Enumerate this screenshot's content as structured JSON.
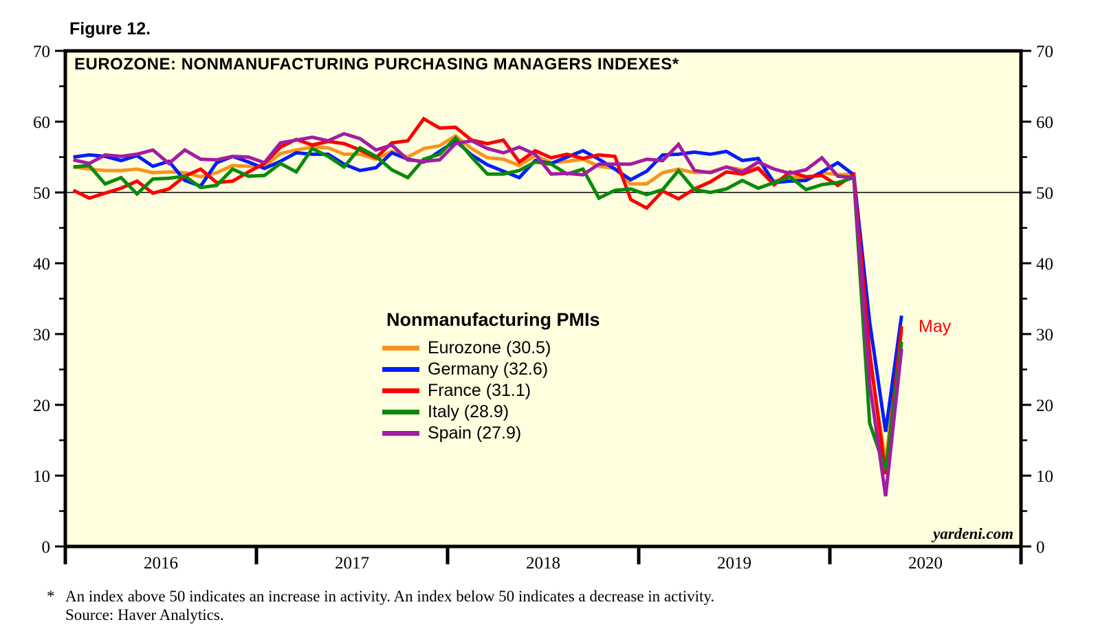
{
  "figure_label": "Figure 12.",
  "annotation_may": "May",
  "watermark": "yardeni.com",
  "footnote": {
    "marker": "*",
    "line1": "An index above 50 indicates an increase in activity. An index below 50 indicates a decrease in activity.",
    "line2": "Source: Haver Analytics."
  },
  "legend": {
    "header": "Nonmanufacturing PMIs"
  },
  "chart_data": {
    "type": "line",
    "title": "EUROZONE: NONMANUFACTURING PURCHASING MANAGERS INDEXES*",
    "background_color": "#FFFFE0",
    "frame_color": "#000000",
    "ylim": [
      0,
      70
    ],
    "y_ticks_major": [
      0,
      10,
      20,
      30,
      40,
      50,
      60,
      70
    ],
    "y_tick_minor_step": 5,
    "y_axis_sides": "both",
    "reference_line_y": 50,
    "x_start": "2016-01",
    "x_end": "2020-05",
    "x_domain": "2016-01 to 2020-12, monthly",
    "x_tick_labels": [
      "2016",
      "2017",
      "2018",
      "2019",
      "2020"
    ],
    "grid": "off",
    "legend_position": "center-left inside plot",
    "annotation": {
      "text": "May",
      "color": "#FF0000",
      "x": "2020-05",
      "y": 31
    },
    "series": [
      {
        "name": "Eurozone",
        "legend_label": "Eurozone (30.5)",
        "last_value": 30.5,
        "color": "#F7941E",
        "values": [
          53.6,
          53.3,
          53.1,
          53.1,
          53.3,
          52.8,
          52.9,
          52.8,
          52.2,
          52.8,
          53.8,
          53.7,
          53.7,
          55.5,
          56.0,
          56.4,
          56.3,
          55.4,
          55.4,
          54.7,
          55.8,
          55.0,
          56.2,
          56.6,
          58.0,
          56.2,
          54.9,
          54.7,
          53.8,
          55.2,
          54.2,
          54.4,
          54.7,
          53.7,
          53.4,
          51.2,
          51.2,
          52.8,
          53.3,
          52.8,
          52.9,
          53.6,
          53.2,
          53.5,
          51.6,
          52.2,
          51.9,
          52.8,
          52.5,
          52.6,
          26.4,
          12.0,
          30.5
        ]
      },
      {
        "name": "Germany",
        "legend_label": "Germany (32.6)",
        "last_value": 32.6,
        "color": "#001EFA",
        "values": [
          55.0,
          55.3,
          55.1,
          54.5,
          55.2,
          53.7,
          54.4,
          51.7,
          50.9,
          54.2,
          55.1,
          54.3,
          53.4,
          54.4,
          55.6,
          55.4,
          55.4,
          54.0,
          53.1,
          53.5,
          55.6,
          54.7,
          54.3,
          55.8,
          57.3,
          55.3,
          53.9,
          53.0,
          52.1,
          54.5,
          54.1,
          55.0,
          55.9,
          54.7,
          53.3,
          51.8,
          53.0,
          55.3,
          55.4,
          55.7,
          55.4,
          55.8,
          54.5,
          54.8,
          51.4,
          51.6,
          51.7,
          52.9,
          54.2,
          52.5,
          31.7,
          16.2,
          32.6
        ]
      },
      {
        "name": "France",
        "legend_label": "France (31.1)",
        "last_value": 31.1,
        "color": "#FA0000",
        "values": [
          50.3,
          49.2,
          49.9,
          50.6,
          51.6,
          49.9,
          50.5,
          52.3,
          53.3,
          51.4,
          51.6,
          52.9,
          54.1,
          56.4,
          57.5,
          56.7,
          57.2,
          56.9,
          56.0,
          54.9,
          57.0,
          57.3,
          60.4,
          59.1,
          59.2,
          57.4,
          56.9,
          57.4,
          54.3,
          55.9,
          54.9,
          55.4,
          54.8,
          55.3,
          55.1,
          49.0,
          47.8,
          50.2,
          49.1,
          50.5,
          51.5,
          52.9,
          52.6,
          53.4,
          51.1,
          52.9,
          52.2,
          52.4,
          51.0,
          52.5,
          27.4,
          10.2,
          31.1
        ]
      },
      {
        "name": "Italy",
        "legend_label": "Italy (28.9)",
        "last_value": 28.9,
        "color": "#0A8A0A",
        "values": [
          53.6,
          53.8,
          51.2,
          52.1,
          49.8,
          51.9,
          52.0,
          52.3,
          50.7,
          51.0,
          53.3,
          52.3,
          52.4,
          54.1,
          52.9,
          56.2,
          55.1,
          53.6,
          56.3,
          55.1,
          53.2,
          52.1,
          54.7,
          55.4,
          57.7,
          55.0,
          52.6,
          52.6,
          53.1,
          54.3,
          54.0,
          52.6,
          53.3,
          49.2,
          50.3,
          50.5,
          49.7,
          50.4,
          53.1,
          50.4,
          50.0,
          50.5,
          51.7,
          50.6,
          51.4,
          52.2,
          50.4,
          51.1,
          51.4,
          52.1,
          17.4,
          10.8,
          28.9
        ]
      },
      {
        "name": "Spain",
        "legend_label": "Spain (27.9)",
        "last_value": 27.9,
        "color": "#A31CA3",
        "values": [
          54.6,
          54.1,
          55.3,
          55.1,
          55.4,
          56.0,
          54.1,
          56.0,
          54.7,
          54.6,
          55.1,
          55.0,
          54.2,
          57.0,
          57.4,
          57.8,
          57.3,
          58.3,
          57.6,
          56.0,
          56.7,
          54.6,
          54.4,
          54.6,
          56.9,
          57.3,
          56.2,
          55.6,
          56.4,
          55.4,
          52.6,
          52.7,
          52.5,
          54.0,
          54.0,
          54.0,
          54.7,
          54.5,
          56.8,
          53.1,
          52.8,
          53.6,
          52.9,
          54.3,
          53.3,
          52.7,
          53.2,
          54.9,
          52.3,
          52.1,
          23.0,
          7.1,
          27.9
        ]
      }
    ]
  }
}
